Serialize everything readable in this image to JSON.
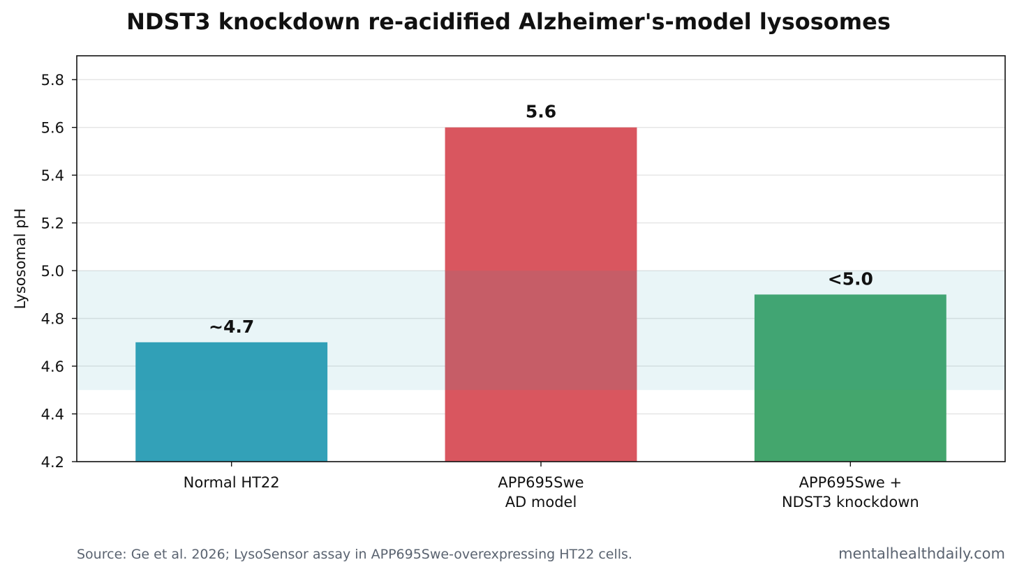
{
  "chart_data": {
    "type": "bar",
    "title": "NDST3 knockdown re-acidified Alzheimer's-model lysosomes",
    "xlabel": "",
    "ylabel": "Lysosomal pH",
    "ylim": [
      4.2,
      5.9
    ],
    "yticks": [
      4.2,
      4.4,
      4.6,
      4.8,
      5.0,
      5.2,
      5.4,
      5.6,
      5.8
    ],
    "grid": "horizontal",
    "categories": [
      [
        "Normal HT22"
      ],
      [
        "APP695Swe",
        "AD model"
      ],
      [
        "APP695Swe +",
        "NDST3 knockdown"
      ]
    ],
    "values": [
      4.7,
      5.6,
      4.9
    ],
    "data_labels": [
      "~4.7",
      "5.6",
      "<5.0"
    ],
    "bar_colors": [
      "#33a1b8",
      "#d9565f",
      "#44a66d"
    ],
    "shaded_band": {
      "from": 4.5,
      "to": 5.0,
      "color": "#2a9bb0"
    },
    "source": "Source: Ge et al. 2026; LysoSensor assay in APP695Swe-overexpressing HT22 cells.",
    "site": "mentalhealthdaily.com"
  }
}
